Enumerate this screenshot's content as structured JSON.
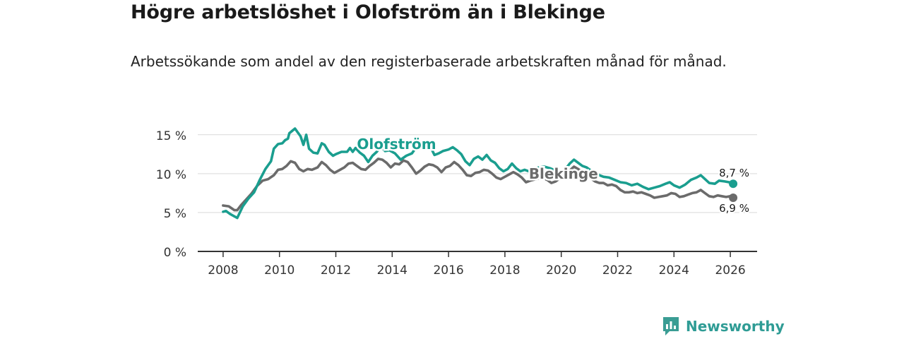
{
  "title": "Högre arbetslöshet i Olofström än i Blekinge",
  "subtitle": "Arbetssökande som andel av den registerbaserade arbetskraften månad för månad.",
  "brand": "Newsworthy",
  "chart_data": {
    "type": "line",
    "y_ticks": [
      {
        "value": 0,
        "label": "0 %"
      },
      {
        "value": 5,
        "label": "5 %"
      },
      {
        "value": 10,
        "label": "10 %"
      },
      {
        "value": 15,
        "label": "15 %"
      }
    ],
    "x_ticks": [
      {
        "value": 2008,
        "label": "2008"
      },
      {
        "value": 2010,
        "label": "2010"
      },
      {
        "value": 2012,
        "label": "2012"
      },
      {
        "value": 2014,
        "label": "2014"
      },
      {
        "value": 2016,
        "label": "2016"
      },
      {
        "value": 2018,
        "label": "2018"
      },
      {
        "value": 2020,
        "label": "2020"
      },
      {
        "value": 2022,
        "label": "2022"
      },
      {
        "value": 2024,
        "label": "2024"
      },
      {
        "value": 2026,
        "label": "2026"
      }
    ],
    "xlim": [
      2007.1,
      2026.95
    ],
    "ylim": [
      0,
      15.8
    ],
    "grid": true,
    "series": [
      {
        "name": "Olofström",
        "color": "#1a9e8f",
        "end_label": "8,7 %",
        "points": [
          [
            2008.0,
            5.1
          ],
          [
            2008.1,
            5.2
          ],
          [
            2008.25,
            4.8
          ],
          [
            2008.5,
            4.3
          ],
          [
            2008.7,
            5.8
          ],
          [
            2008.9,
            6.8
          ],
          [
            2009.1,
            7.6
          ],
          [
            2009.3,
            9.2
          ],
          [
            2009.5,
            10.6
          ],
          [
            2009.7,
            11.6
          ],
          [
            2009.8,
            13.2
          ],
          [
            2009.95,
            13.8
          ],
          [
            2010.1,
            13.9
          ],
          [
            2010.2,
            14.3
          ],
          [
            2010.3,
            14.5
          ],
          [
            2010.35,
            15.2
          ],
          [
            2010.45,
            15.5
          ],
          [
            2010.55,
            15.8
          ],
          [
            2010.65,
            15.3
          ],
          [
            2010.75,
            14.8
          ],
          [
            2010.85,
            13.7
          ],
          [
            2010.95,
            15.0
          ],
          [
            2011.05,
            13.2
          ],
          [
            2011.2,
            12.7
          ],
          [
            2011.35,
            12.6
          ],
          [
            2011.5,
            13.9
          ],
          [
            2011.6,
            13.7
          ],
          [
            2011.75,
            12.8
          ],
          [
            2011.9,
            12.3
          ],
          [
            2012.0,
            12.5
          ],
          [
            2012.2,
            12.8
          ],
          [
            2012.4,
            12.8
          ],
          [
            2012.5,
            13.3
          ],
          [
            2012.6,
            12.8
          ],
          [
            2012.7,
            13.3
          ],
          [
            2012.85,
            12.7
          ],
          [
            2013.0,
            12.3
          ],
          [
            2013.15,
            11.5
          ],
          [
            2013.3,
            12.3
          ],
          [
            2013.45,
            12.8
          ],
          [
            2013.6,
            13.5
          ],
          [
            2013.75,
            12.9
          ],
          [
            2013.9,
            13.0
          ],
          [
            2014.1,
            12.6
          ],
          [
            2014.3,
            11.8
          ],
          [
            2014.5,
            12.3
          ],
          [
            2014.7,
            12.6
          ],
          [
            2014.9,
            13.6
          ],
          [
            2015.05,
            13.9
          ],
          [
            2015.2,
            14.0
          ],
          [
            2015.35,
            13.5
          ],
          [
            2015.5,
            12.4
          ],
          [
            2015.65,
            12.6
          ],
          [
            2015.8,
            12.9
          ],
          [
            2016.0,
            13.1
          ],
          [
            2016.15,
            13.4
          ],
          [
            2016.3,
            13.0
          ],
          [
            2016.45,
            12.5
          ],
          [
            2016.6,
            11.6
          ],
          [
            2016.75,
            11.1
          ],
          [
            2016.9,
            11.9
          ],
          [
            2017.05,
            12.2
          ],
          [
            2017.2,
            11.8
          ],
          [
            2017.35,
            12.4
          ],
          [
            2017.5,
            11.7
          ],
          [
            2017.65,
            11.4
          ],
          [
            2017.8,
            10.7
          ],
          [
            2017.95,
            10.3
          ],
          [
            2018.1,
            10.6
          ],
          [
            2018.25,
            11.3
          ],
          [
            2018.4,
            10.7
          ],
          [
            2018.55,
            10.3
          ],
          [
            2018.7,
            10.5
          ],
          [
            2018.85,
            10.3
          ],
          [
            2019.0,
            10.6
          ],
          [
            2019.2,
            10.8
          ],
          [
            2019.4,
            10.9
          ],
          [
            2019.6,
            10.7
          ],
          [
            2019.8,
            10.4
          ],
          [
            2020.0,
            10.2
          ],
          [
            2020.15,
            10.6
          ],
          [
            2020.3,
            11.3
          ],
          [
            2020.45,
            11.8
          ],
          [
            2020.6,
            11.4
          ],
          [
            2020.75,
            11.0
          ],
          [
            2020.9,
            10.8
          ],
          [
            2021.05,
            10.4
          ],
          [
            2021.2,
            10.1
          ],
          [
            2021.35,
            9.8
          ],
          [
            2021.5,
            9.6
          ],
          [
            2021.7,
            9.5
          ],
          [
            2021.9,
            9.2
          ],
          [
            2022.1,
            8.9
          ],
          [
            2022.3,
            8.8
          ],
          [
            2022.5,
            8.5
          ],
          [
            2022.7,
            8.7
          ],
          [
            2022.9,
            8.3
          ],
          [
            2023.1,
            8.0
          ],
          [
            2023.3,
            8.2
          ],
          [
            2023.5,
            8.4
          ],
          [
            2023.7,
            8.7
          ],
          [
            2023.85,
            8.9
          ],
          [
            2024.0,
            8.5
          ],
          [
            2024.2,
            8.2
          ],
          [
            2024.4,
            8.6
          ],
          [
            2024.6,
            9.2
          ],
          [
            2024.8,
            9.5
          ],
          [
            2024.95,
            9.8
          ],
          [
            2025.1,
            9.3
          ],
          [
            2025.25,
            8.8
          ],
          [
            2025.45,
            8.7
          ],
          [
            2025.6,
            9.1
          ],
          [
            2025.8,
            9.0
          ],
          [
            2025.95,
            8.9
          ],
          [
            2026.1,
            8.7
          ]
        ]
      },
      {
        "name": "Blekinge",
        "color": "#6b6b6b",
        "end_label": "6,9 %",
        "points": [
          [
            2008.0,
            5.9
          ],
          [
            2008.2,
            5.8
          ],
          [
            2008.4,
            5.3
          ],
          [
            2008.5,
            5.3
          ],
          [
            2008.65,
            6.0
          ],
          [
            2008.8,
            6.6
          ],
          [
            2009.0,
            7.4
          ],
          [
            2009.2,
            8.4
          ],
          [
            2009.4,
            9.1
          ],
          [
            2009.6,
            9.3
          ],
          [
            2009.8,
            9.8
          ],
          [
            2009.95,
            10.5
          ],
          [
            2010.1,
            10.6
          ],
          [
            2010.25,
            11.0
          ],
          [
            2010.4,
            11.6
          ],
          [
            2010.55,
            11.4
          ],
          [
            2010.7,
            10.6
          ],
          [
            2010.85,
            10.3
          ],
          [
            2011.0,
            10.6
          ],
          [
            2011.15,
            10.5
          ],
          [
            2011.35,
            10.8
          ],
          [
            2011.5,
            11.5
          ],
          [
            2011.65,
            11.1
          ],
          [
            2011.8,
            10.5
          ],
          [
            2011.95,
            10.1
          ],
          [
            2012.1,
            10.4
          ],
          [
            2012.3,
            10.8
          ],
          [
            2012.45,
            11.3
          ],
          [
            2012.6,
            11.4
          ],
          [
            2012.75,
            11.0
          ],
          [
            2012.9,
            10.6
          ],
          [
            2013.05,
            10.5
          ],
          [
            2013.2,
            11.0
          ],
          [
            2013.35,
            11.4
          ],
          [
            2013.5,
            11.9
          ],
          [
            2013.65,
            11.8
          ],
          [
            2013.8,
            11.4
          ],
          [
            2013.95,
            10.8
          ],
          [
            2014.1,
            11.3
          ],
          [
            2014.25,
            11.2
          ],
          [
            2014.4,
            11.7
          ],
          [
            2014.55,
            11.5
          ],
          [
            2014.7,
            10.8
          ],
          [
            2014.85,
            10.0
          ],
          [
            2015.0,
            10.4
          ],
          [
            2015.15,
            10.9
          ],
          [
            2015.3,
            11.2
          ],
          [
            2015.45,
            11.1
          ],
          [
            2015.6,
            10.8
          ],
          [
            2015.75,
            10.2
          ],
          [
            2015.9,
            10.8
          ],
          [
            2016.05,
            11.0
          ],
          [
            2016.2,
            11.5
          ],
          [
            2016.35,
            11.1
          ],
          [
            2016.5,
            10.5
          ],
          [
            2016.65,
            9.8
          ],
          [
            2016.8,
            9.7
          ],
          [
            2016.95,
            10.1
          ],
          [
            2017.1,
            10.2
          ],
          [
            2017.25,
            10.5
          ],
          [
            2017.4,
            10.4
          ],
          [
            2017.55,
            10.0
          ],
          [
            2017.7,
            9.5
          ],
          [
            2017.85,
            9.3
          ],
          [
            2018.0,
            9.6
          ],
          [
            2018.15,
            9.9
          ],
          [
            2018.3,
            10.2
          ],
          [
            2018.45,
            9.9
          ],
          [
            2018.6,
            9.5
          ],
          [
            2018.75,
            8.9
          ],
          [
            2018.9,
            9.1
          ],
          [
            2019.1,
            9.3
          ],
          [
            2019.3,
            9.5
          ],
          [
            2019.5,
            9.2
          ],
          [
            2019.65,
            8.8
          ],
          [
            2019.8,
            9.0
          ],
          [
            2019.95,
            9.4
          ],
          [
            2020.15,
            9.8
          ],
          [
            2020.3,
            10.4
          ],
          [
            2020.45,
            10.9
          ],
          [
            2020.6,
            10.6
          ],
          [
            2020.75,
            10.2
          ],
          [
            2020.9,
            9.9
          ],
          [
            2021.05,
            9.4
          ],
          [
            2021.2,
            9.0
          ],
          [
            2021.35,
            8.8
          ],
          [
            2021.5,
            8.8
          ],
          [
            2021.65,
            8.5
          ],
          [
            2021.8,
            8.6
          ],
          [
            2021.95,
            8.4
          ],
          [
            2022.1,
            7.9
          ],
          [
            2022.25,
            7.6
          ],
          [
            2022.4,
            7.6
          ],
          [
            2022.55,
            7.7
          ],
          [
            2022.7,
            7.5
          ],
          [
            2022.85,
            7.6
          ],
          [
            2023.0,
            7.4
          ],
          [
            2023.15,
            7.2
          ],
          [
            2023.3,
            6.9
          ],
          [
            2023.45,
            7.0
          ],
          [
            2023.6,
            7.1
          ],
          [
            2023.75,
            7.2
          ],
          [
            2023.9,
            7.5
          ],
          [
            2024.05,
            7.4
          ],
          [
            2024.2,
            7.0
          ],
          [
            2024.35,
            7.1
          ],
          [
            2024.5,
            7.3
          ],
          [
            2024.65,
            7.5
          ],
          [
            2024.8,
            7.6
          ],
          [
            2024.95,
            7.9
          ],
          [
            2025.1,
            7.5
          ],
          [
            2025.25,
            7.1
          ],
          [
            2025.4,
            7.0
          ],
          [
            2025.55,
            7.2
          ],
          [
            2025.7,
            7.1
          ],
          [
            2025.85,
            7.0
          ],
          [
            2026.0,
            7.1
          ],
          [
            2026.1,
            6.9
          ]
        ]
      }
    ]
  },
  "colors": {
    "grid": "#d9d9d9",
    "axis": "#333333",
    "brand": "#2f9c95"
  },
  "icons": {
    "brand": "bar-chart-speech-bubble-icon"
  }
}
